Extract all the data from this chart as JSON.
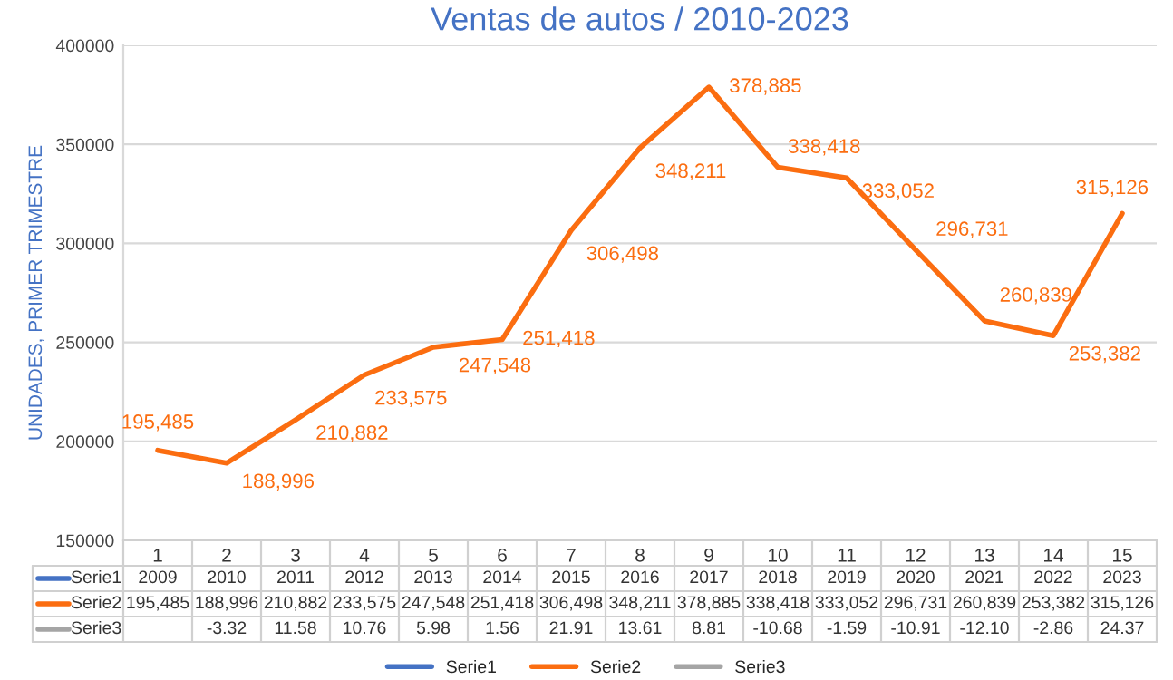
{
  "chart_data": {
    "type": "line",
    "title": "Ventas de autos / 2010-2023",
    "ylabel": "UNIDADES, PRIMER TRIMESTRE",
    "categories": [
      "1",
      "2",
      "3",
      "4",
      "5",
      "6",
      "7",
      "8",
      "9",
      "10",
      "11",
      "12",
      "13",
      "14",
      "15"
    ],
    "series": [
      {
        "name": "Serie1",
        "color": "#4472c4",
        "values": [
          null,
          null,
          null,
          null,
          null,
          null,
          null,
          null,
          null,
          null,
          null,
          null,
          null,
          null,
          null
        ],
        "value_labels": [
          "2009",
          "2010",
          "2011",
          "2012",
          "2013",
          "2014",
          "2015",
          "2016",
          "2017",
          "2018",
          "2019",
          "2020",
          "2021",
          "2022",
          "2023"
        ]
      },
      {
        "name": "Serie2",
        "color": "#fb6d10",
        "values": [
          195485,
          188996,
          210882,
          233575,
          247548,
          251418,
          306498,
          348211,
          378885,
          338418,
          333052,
          296731,
          260839,
          253382,
          315126
        ],
        "value_labels": [
          "195,485",
          "188,996",
          "210,882",
          "233,575",
          "247,548",
          "251,418",
          "306,498",
          "348,211",
          "378,885",
          "338,418",
          "333,052",
          "296,731",
          "260,839",
          "253,382",
          "315,126"
        ]
      },
      {
        "name": "Serie3",
        "color": "#a5a5a5",
        "values": [
          null,
          null,
          null,
          null,
          null,
          null,
          null,
          null,
          null,
          null,
          null,
          null,
          null,
          null,
          null
        ],
        "value_labels": [
          null,
          "-3.32",
          "11.58",
          "10.76",
          "5.98",
          "1.56",
          "21.91",
          "13.61",
          "8.81",
          "-10.68",
          "-1.59",
          "-10.91",
          "-12.10",
          "-2.86",
          "24.37"
        ]
      }
    ],
    "ylim": [
      150000,
      400000
    ],
    "yticks": [
      150000,
      200000,
      250000,
      300000,
      350000,
      400000
    ],
    "grid": "y",
    "legend": "bottom"
  }
}
